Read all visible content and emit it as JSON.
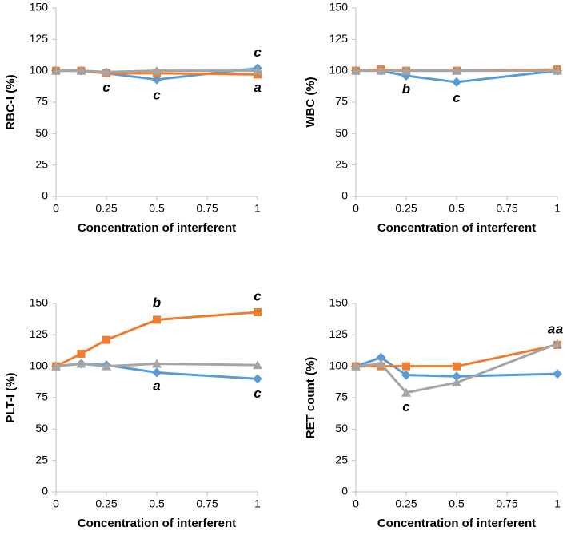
{
  "chart_data": [
    {
      "type": "line",
      "ylabel": "RBC-I (%)",
      "xlabel": "Concentration of interferent",
      "x": [
        0,
        0.125,
        0.25,
        0.5,
        1
      ],
      "xlim": [
        0,
        1
      ],
      "xticks": [
        0,
        0.25,
        0.5,
        0.75,
        1
      ],
      "ylim": [
        0,
        150
      ],
      "yticks": [
        0,
        25,
        50,
        75,
        100,
        125,
        150
      ],
      "series": [
        {
          "color": "#5b9bd5",
          "marker": "diamond",
          "values": [
            100,
            100,
            98,
            93,
            102
          ]
        },
        {
          "color": "#ed7d31",
          "marker": "square",
          "values": [
            100,
            100,
            98,
            98,
            97
          ]
        },
        {
          "color": "#a5a5a5",
          "marker": "triangle",
          "values": [
            100,
            100,
            99,
            100,
            100
          ]
        }
      ],
      "annotations": [
        {
          "text": "c",
          "x": 0.25,
          "y": 86,
          "color": "#5b9bd5"
        },
        {
          "text": "c",
          "x": 0.5,
          "y": 80,
          "color": "#5b9bd5"
        },
        {
          "text": "c",
          "x": 1,
          "y": 114,
          "color": "#5b9bd5"
        },
        {
          "text": "a",
          "x": 1,
          "y": 86,
          "color": "#ed7d31"
        }
      ]
    },
    {
      "type": "line",
      "ylabel": "WBC (%)",
      "xlabel": "Concentration of interferent",
      "x": [
        0,
        0.125,
        0.25,
        0.5,
        1
      ],
      "xlim": [
        0,
        1
      ],
      "xticks": [
        0,
        0.25,
        0.5,
        0.75,
        1
      ],
      "ylim": [
        0,
        150
      ],
      "yticks": [
        0,
        25,
        50,
        75,
        100,
        125,
        150
      ],
      "series": [
        {
          "color": "#5b9bd5",
          "marker": "diamond",
          "values": [
            100,
            100,
            96,
            91,
            100
          ]
        },
        {
          "color": "#ed7d31",
          "marker": "square",
          "values": [
            100,
            101,
            100,
            100,
            101
          ]
        },
        {
          "color": "#a5a5a5",
          "marker": "triangle",
          "values": [
            100,
            100,
            100,
            100,
            100
          ]
        }
      ],
      "annotations": [
        {
          "text": "b",
          "x": 0.25,
          "y": 85,
          "color": "#5b9bd5"
        },
        {
          "text": "c",
          "x": 0.5,
          "y": 78,
          "color": "#5b9bd5"
        }
      ]
    },
    {
      "type": "line",
      "ylabel": "PLT-I (%)",
      "xlabel": "Concentration of interferent",
      "x": [
        0,
        0.125,
        0.25,
        0.5,
        1
      ],
      "xlim": [
        0,
        1
      ],
      "xticks": [
        0,
        0.25,
        0.5,
        0.75,
        1
      ],
      "ylim": [
        0,
        150
      ],
      "yticks": [
        0,
        25,
        50,
        75,
        100,
        125,
        150
      ],
      "series": [
        {
          "color": "#5b9bd5",
          "marker": "diamond",
          "values": [
            100,
            102,
            101,
            95,
            90
          ]
        },
        {
          "color": "#ed7d31",
          "marker": "square",
          "values": [
            100,
            110,
            121,
            137,
            143
          ]
        },
        {
          "color": "#a5a5a5",
          "marker": "triangle",
          "values": [
            100,
            102,
            100,
            102,
            101
          ]
        }
      ],
      "annotations": [
        {
          "text": "b",
          "x": 0.5,
          "y": 150,
          "color": "#ed7d31"
        },
        {
          "text": "c",
          "x": 1,
          "y": 155,
          "color": "#ed7d31"
        },
        {
          "text": "a",
          "x": 0.5,
          "y": 84,
          "color": "#5b9bd5"
        },
        {
          "text": "c",
          "x": 1,
          "y": 78,
          "color": "#5b9bd5"
        }
      ]
    },
    {
      "type": "line",
      "ylabel": "RET count (%)",
      "xlabel": "Concentration of interferent",
      "x": [
        0,
        0.125,
        0.25,
        0.5,
        1
      ],
      "xlim": [
        0,
        1
      ],
      "xticks": [
        0,
        0.25,
        0.5,
        0.75,
        1
      ],
      "ylim": [
        0,
        150
      ],
      "yticks": [
        0,
        25,
        50,
        75,
        100,
        125,
        150
      ],
      "series": [
        {
          "color": "#5b9bd5",
          "marker": "diamond",
          "values": [
            100,
            107,
            93,
            92,
            94
          ]
        },
        {
          "color": "#ed7d31",
          "marker": "square",
          "values": [
            100,
            100,
            100,
            100,
            117
          ]
        },
        {
          "color": "#a5a5a5",
          "marker": "triangle",
          "values": [
            100,
            102,
            79,
            87,
            118
          ]
        }
      ],
      "annotations": [
        {
          "text": "a",
          "x": 0.97,
          "y": 129,
          "color": "#ed7d31"
        },
        {
          "text": "a",
          "x": 1.01,
          "y": 129,
          "color": "#a5a5a5"
        },
        {
          "text": "c",
          "x": 0.25,
          "y": 67,
          "color": "#a5a5a5"
        }
      ]
    }
  ]
}
